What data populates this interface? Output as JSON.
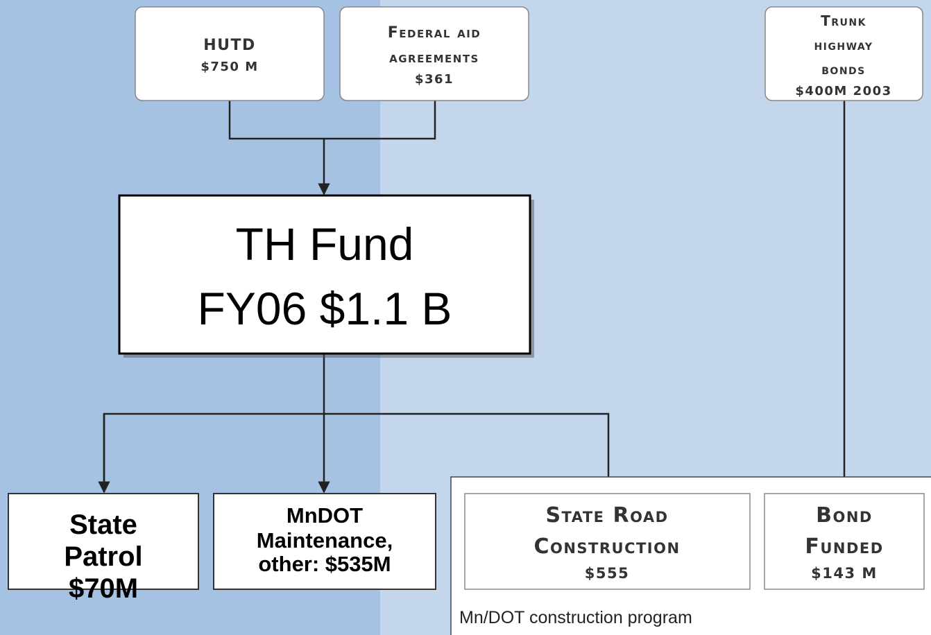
{
  "nodes": [
    {
      "lines": [
        "HUTD",
        "$750 M"
      ]
    },
    {
      "lines": [
        "Federal aid",
        "agreements",
        "$361"
      ]
    },
    {
      "lines": [
        "Trunk",
        "highway",
        "bonds",
        "$400M 2003"
      ]
    },
    {
      "lines": [
        "TH Fund",
        "FY06 $1.1 B"
      ]
    },
    {
      "lines": [
        "State",
        "Patrol",
        "$70M"
      ]
    },
    {
      "lines": [
        "MnDOT",
        "Maintenance,",
        "other: $535M"
      ]
    },
    {
      "lines": [
        "State Road",
        "Construction",
        "$555"
      ]
    },
    {
      "lines": [
        "Bond",
        "Funded",
        "$143 M"
      ]
    }
  ],
  "group": {
    "label": "Mn/DOT construction program"
  }
}
